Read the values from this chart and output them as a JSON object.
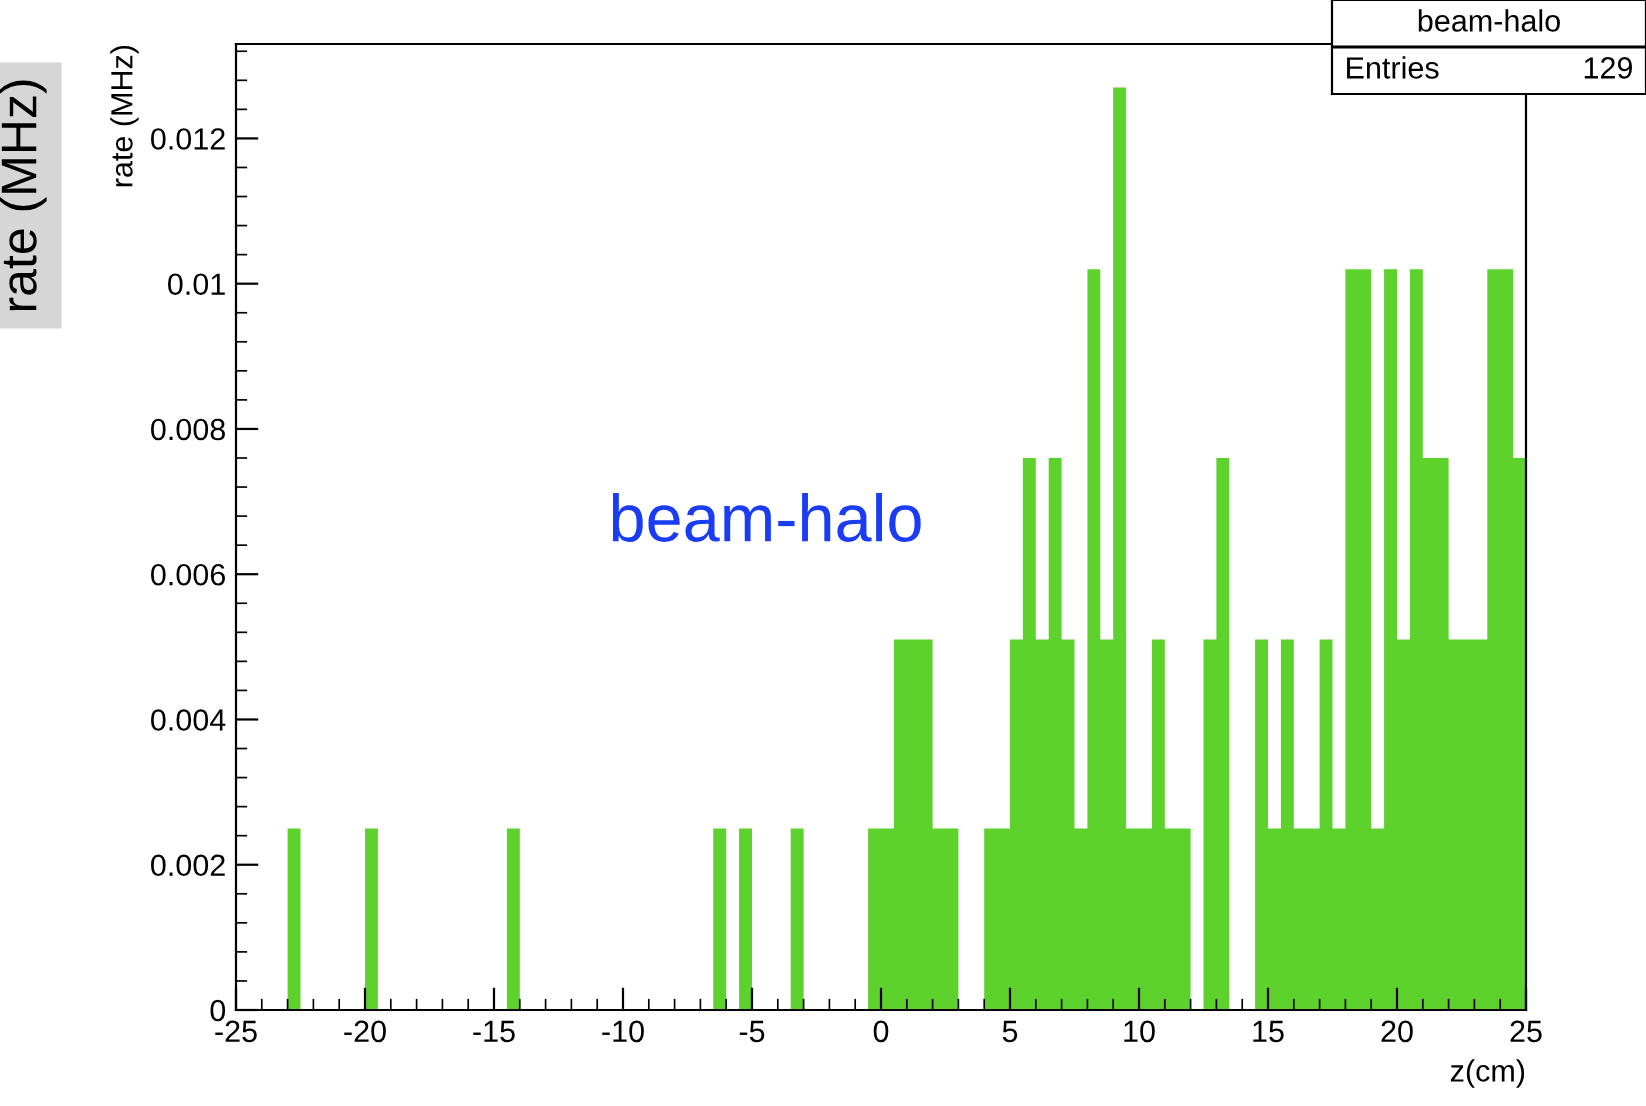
{
  "chart_data": {
    "type": "histogram",
    "xlabel": "z(cm)",
    "ylabel": "rate (MHz)",
    "annotations": [
      "rate (MHz)",
      "beam-halo",
      "beam-halo",
      "Entries",
      "129"
    ],
    "bins": [
      -25,
      -24.5,
      -24,
      -23.5,
      -23,
      -22.5,
      -22,
      -21.5,
      -21,
      -20.5,
      -20,
      -19.5,
      -19,
      -18.5,
      -18,
      -17.5,
      -17,
      -16.5,
      -16,
      -15.5,
      -15,
      -14.5,
      -14,
      -13.5,
      -13,
      -12.5,
      -12,
      -11.5,
      -11,
      -10.5,
      -10,
      -9.5,
      -9,
      -8.5,
      -8,
      -7.5,
      -7,
      -6.5,
      -6,
      -5.5,
      -5,
      -4.5,
      -4,
      -3.5,
      -3,
      -2.5,
      -2,
      -1.5,
      -1,
      -0.5,
      0,
      0.5,
      1,
      1.5,
      2,
      2.5,
      3,
      3.5,
      4,
      4.5,
      5,
      5.5,
      6,
      6.5,
      7,
      7.5,
      8,
      8.5,
      9,
      9.5,
      10,
      10.5,
      11,
      11.5,
      12,
      12.5,
      13,
      13.5,
      14,
      14.5,
      15,
      15.5,
      16,
      16.5,
      17,
      17.5,
      18,
      18.5,
      19,
      19.5,
      20,
      20.5,
      21,
      21.5,
      22,
      22.5,
      23,
      23.5,
      24,
      24.5,
      25
    ],
    "values": [
      0,
      0,
      0,
      0,
      0.0025,
      0,
      0,
      0,
      0,
      0,
      0.0025,
      0,
      0,
      0,
      0,
      0,
      0,
      0,
      0,
      0,
      0,
      0.0025,
      0,
      0,
      0,
      0,
      0,
      0,
      0,
      0,
      0,
      0,
      0,
      0,
      0,
      0,
      0,
      0.0025,
      0,
      0.0025,
      0,
      0,
      0,
      0.0025,
      0,
      0,
      0,
      0,
      0,
      0.0025,
      0.0025,
      0.0051,
      0.0051,
      0.0051,
      0.0025,
      0.0025,
      0,
      0,
      0.0025,
      0.0025,
      0.0051,
      0.0076,
      0.0051,
      0.0076,
      0.0051,
      0.0025,
      0.0102,
      0.0051,
      0.0127,
      0.0025,
      0.0025,
      0.0051,
      0.0025,
      0.0025,
      0,
      0.0051,
      0.0076,
      0,
      0,
      0.0051,
      0.0025,
      0.0051,
      0.0025,
      0.0025,
      0.0051,
      0.0025,
      0.0102,
      0.0102,
      0.0025,
      0.0102,
      0.0051,
      0.0102,
      0.0076,
      0.0076,
      0.0051,
      0.0051,
      0.0051,
      0.0102,
      0.0102,
      0.0076
    ],
    "color": "#5dd12c",
    "xlim": [
      -25,
      25
    ],
    "xticks": [
      -25,
      -20,
      -15,
      -10,
      -5,
      0,
      5,
      10,
      15,
      20,
      25
    ],
    "ylim": [
      0,
      0.0133
    ],
    "yticks": [
      0,
      0.002,
      0.004,
      0.006,
      0.008,
      {
        "value": 0.01,
        "label": "0.01"
      },
      0.012
    ],
    "grid": false
  }
}
